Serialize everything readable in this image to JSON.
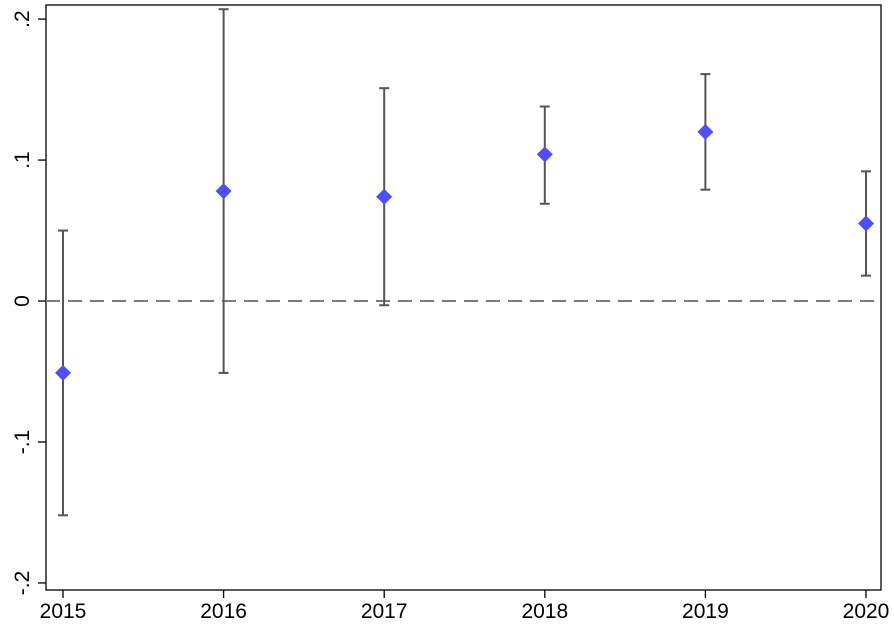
{
  "chart_data": {
    "type": "scatter",
    "title": "",
    "xlabel": "",
    "ylabel": "",
    "x_ticks": [
      "2015",
      "2016",
      "2017",
      "2018",
      "2019",
      "2020"
    ],
    "y_ticks": [
      {
        "value": 0.2,
        "label": ".2"
      },
      {
        "value": 0.1,
        "label": ".1"
      },
      {
        "value": 0,
        "label": "0"
      },
      {
        "value": -0.1,
        "label": "-.1"
      },
      {
        "value": -0.2,
        "label": "-.2"
      }
    ],
    "xlim": [
      2015,
      2020
    ],
    "ylim": [
      -0.205,
      0.21
    ],
    "reference_line": {
      "y": 0,
      "style": "dashed"
    },
    "grid": false,
    "marker": "diamond",
    "marker_color": "#4f4ff5",
    "ci_color": "#555555",
    "series": [
      {
        "points": [
          {
            "x": 2015,
            "y": -0.051,
            "lo": -0.152,
            "hi": 0.05
          },
          {
            "x": 2016,
            "y": 0.078,
            "lo": -0.051,
            "hi": 0.207
          },
          {
            "x": 2017,
            "y": 0.074,
            "lo": -0.003,
            "hi": 0.151
          },
          {
            "x": 2018,
            "y": 0.104,
            "lo": 0.069,
            "hi": 0.138
          },
          {
            "x": 2019,
            "y": 0.12,
            "lo": 0.079,
            "hi": 0.161
          },
          {
            "x": 2020,
            "y": 0.055,
            "lo": 0.018,
            "hi": 0.092
          }
        ]
      }
    ]
  }
}
